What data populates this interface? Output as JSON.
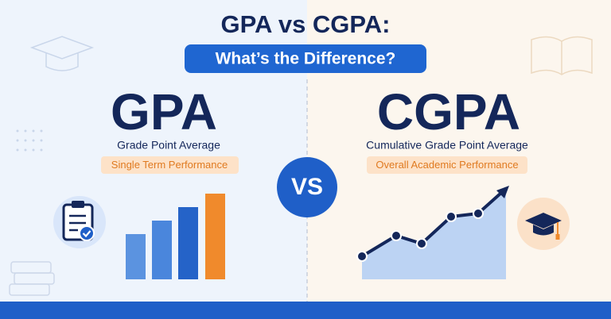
{
  "header": {
    "title": "GPA vs CGPA:",
    "subtitle": "What’s the Difference?"
  },
  "left": {
    "heading": "GPA",
    "full_name": "Grade Point Average",
    "tag": "Single Term Performance"
  },
  "center": {
    "label": "VS"
  },
  "right": {
    "heading": "CGPA",
    "full_name": "Cumulative Grade Point Average",
    "tag": "Overall Academic Performance"
  }
}
